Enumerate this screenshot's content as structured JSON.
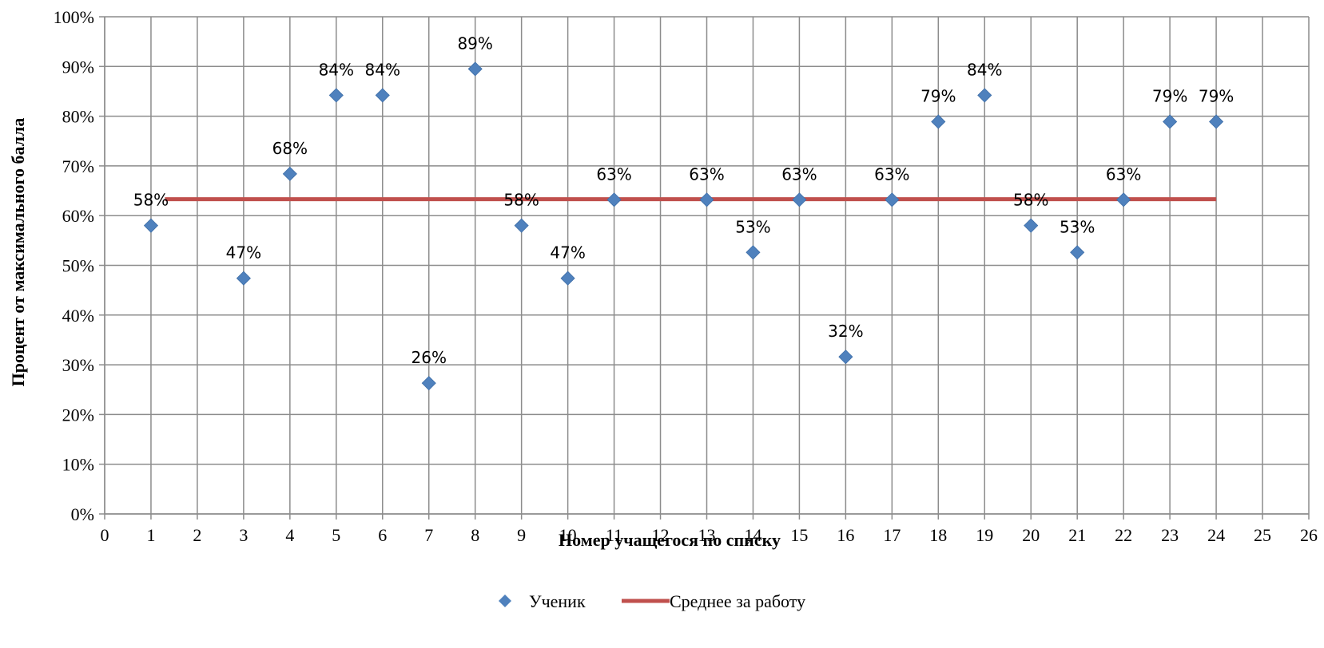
{
  "chart_data": {
    "type": "scatter",
    "title": "",
    "xlabel": "Номер учащегося по списку",
    "ylabel": "Процент от максимального балла",
    "xlim": [
      0,
      26
    ],
    "ylim": [
      0,
      100
    ],
    "x_ticks": [
      0,
      1,
      2,
      3,
      4,
      5,
      6,
      7,
      8,
      9,
      10,
      11,
      12,
      13,
      14,
      15,
      16,
      17,
      18,
      19,
      20,
      21,
      22,
      23,
      24,
      25,
      26
    ],
    "y_ticks": [
      "0%",
      "10%",
      "20%",
      "30%",
      "40%",
      "50%",
      "60%",
      "70%",
      "80%",
      "90%",
      "100%"
    ],
    "grid": true,
    "legend_position": "bottom",
    "series": [
      {
        "name": "Ученик",
        "kind": "scatter",
        "marker": "diamond",
        "color": "#4F81BD",
        "points": [
          {
            "x": 1,
            "y": 58,
            "label": "58%"
          },
          {
            "x": 3,
            "y": 47.4,
            "label": "47%"
          },
          {
            "x": 4,
            "y": 68.4,
            "label": "68%"
          },
          {
            "x": 5,
            "y": 84.2,
            "label": "84%"
          },
          {
            "x": 6,
            "y": 84.2,
            "label": "84%"
          },
          {
            "x": 7,
            "y": 26.3,
            "label": "26%"
          },
          {
            "x": 8,
            "y": 89.5,
            "label": "89%"
          },
          {
            "x": 9,
            "y": 58,
            "label": "58%"
          },
          {
            "x": 10,
            "y": 47.4,
            "label": "47%"
          },
          {
            "x": 11,
            "y": 63.2,
            "label": "63%"
          },
          {
            "x": 13,
            "y": 63.2,
            "label": "63%"
          },
          {
            "x": 14,
            "y": 52.6,
            "label": "53%"
          },
          {
            "x": 15,
            "y": 63.2,
            "label": "63%"
          },
          {
            "x": 16,
            "y": 31.6,
            "label": "32%"
          },
          {
            "x": 17,
            "y": 63.2,
            "label": "63%"
          },
          {
            "x": 18,
            "y": 78.9,
            "label": "79%"
          },
          {
            "x": 19,
            "y": 84.2,
            "label": "84%"
          },
          {
            "x": 20,
            "y": 58,
            "label": "58%"
          },
          {
            "x": 21,
            "y": 52.6,
            "label": "53%"
          },
          {
            "x": 22,
            "y": 63.2,
            "label": "63%"
          },
          {
            "x": 23,
            "y": 78.9,
            "label": "79%"
          },
          {
            "x": 24,
            "y": 78.9,
            "label": "79%"
          }
        ]
      },
      {
        "name": "Среднее за работу",
        "kind": "line",
        "color": "#C0504D",
        "points": [
          {
            "x": 1.3,
            "y": 63.3
          },
          {
            "x": 24,
            "y": 63.3
          }
        ]
      }
    ]
  }
}
